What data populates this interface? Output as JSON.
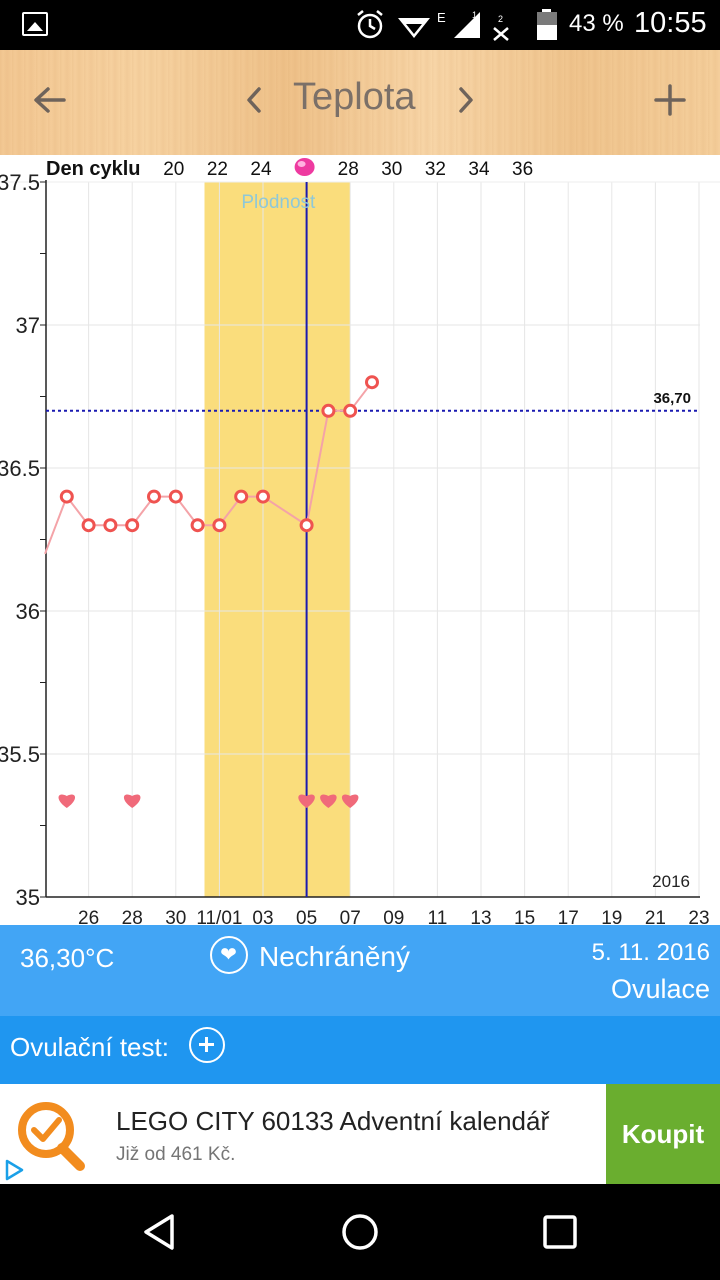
{
  "status_bar": {
    "battery_percent": "43 %",
    "time": "10:55",
    "network_label": "E"
  },
  "app_bar": {
    "title": "Teplota",
    "icons": [
      "back-arrow-icon",
      "chevron-left-icon",
      "chevron-right-icon",
      "plus-icon"
    ]
  },
  "chart_data": {
    "type": "line",
    "title": "",
    "top_axis_label": "Den cyklu",
    "cycle_day_ticks": [
      "20",
      "22",
      "24",
      "26",
      "28",
      "30",
      "32",
      "34",
      "36"
    ],
    "cycle_day_26_marker": "pink-dot",
    "y_axis": {
      "ylim": [
        35,
        37.5
      ],
      "ticks": [
        "37.5",
        "37",
        "36.5",
        "36",
        "35.5",
        "35"
      ]
    },
    "x_axis": {
      "ticks": [
        "26",
        "28",
        "30",
        "11/01",
        "03",
        "05",
        "07",
        "09",
        "11",
        "13",
        "15",
        "17",
        "19",
        "21",
        "23"
      ],
      "year_label": "2016"
    },
    "fertile_window": {
      "label": "Plodnost",
      "from": "2016-10-31",
      "to": "2016-11-07"
    },
    "ovulation_line": {
      "date": "2016-11-05"
    },
    "coverline": {
      "value": 36.7,
      "label": "36,70"
    },
    "series": [
      {
        "points": [
          {
            "x": "2016-10-24",
            "y": 36.2
          },
          {
            "x": "2016-10-25",
            "y": 36.4
          },
          {
            "x": "2016-10-26",
            "y": 36.3
          },
          {
            "x": "2016-10-27",
            "y": 36.3
          },
          {
            "x": "2016-10-28",
            "y": 36.3
          },
          {
            "x": "2016-10-29",
            "y": 36.4
          },
          {
            "x": "2016-10-30",
            "y": 36.4
          },
          {
            "x": "2016-10-31",
            "y": 36.3
          },
          {
            "x": "2016-11-01",
            "y": 36.3
          },
          {
            "x": "2016-11-02",
            "y": 36.4
          },
          {
            "x": "2016-11-03",
            "y": 36.4
          },
          {
            "x": "2016-11-05",
            "y": 36.3
          },
          {
            "x": "2016-11-06",
            "y": 36.7
          },
          {
            "x": "2016-11-07",
            "y": 36.7
          },
          {
            "x": "2016-11-08",
            "y": 36.8
          }
        ]
      }
    ],
    "intercourse_days": [
      "2016-10-25",
      "2016-10-28",
      "2016-11-05",
      "2016-11-06",
      "2016-11-07"
    ],
    "grid": true,
    "colors": {
      "line": "#f4a3a8",
      "marker": "#ef5350",
      "fertile": "#fadd7c",
      "coverline": "#1a1ab0",
      "ovulation": "#1a1ab0",
      "heart": "#f06a7a",
      "fertile_label": "#8ec8d8"
    }
  },
  "info": {
    "temperature": "36,30°C",
    "protection": "Nechráněný",
    "date": "5. 11. 2016",
    "phase": "Ovulace"
  },
  "ovulation_test": {
    "label": "Ovulační test:"
  },
  "ad": {
    "headline": "LEGO CITY 60133 Adventní kalendář",
    "sub": "Již od 461 Kč.",
    "cta": "Koupit"
  },
  "colors": {
    "info_bar": "#42a5f5",
    "ov_bar": "#1f96f0",
    "cta": "#6aae2f"
  }
}
